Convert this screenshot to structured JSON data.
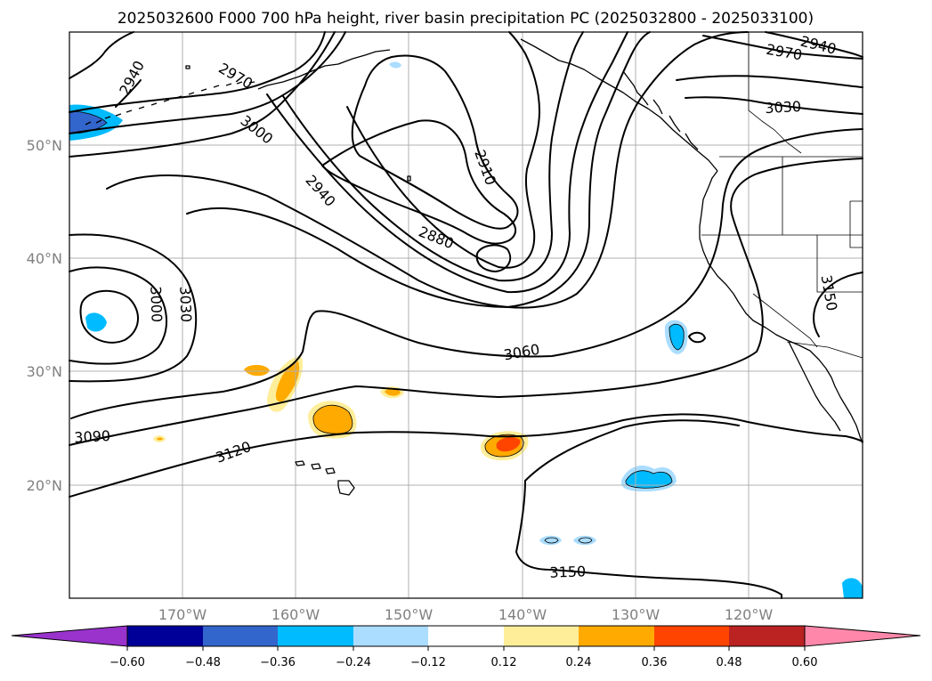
{
  "title": "2025032600 F000 700 hPa height, river basin precipitation PC (2025032800 - 2025033100)",
  "lat_labels": [
    "50°N",
    "40°N",
    "30°N",
    "20°N"
  ],
  "lon_labels": [
    "170°W",
    "160°W",
    "150°W",
    "140°W",
    "130°W",
    "120°W"
  ],
  "contour_labels": [
    "2940",
    "2970",
    "3000",
    "2940",
    "2910",
    "2880",
    "3000",
    "3030",
    "3060",
    "3090",
    "3120",
    "3150",
    "2970",
    "2940",
    "3030",
    "3150"
  ],
  "colorbar": {
    "colors": [
      "#9933cc",
      "#000099",
      "#3366cc",
      "#00bbff",
      "#aaddff",
      "#ffffff",
      "#ffee99",
      "#ffaa00",
      "#ff4400",
      "#bb2222",
      "#ff88aa"
    ],
    "tick_labels": [
      "−0.60",
      "−0.48",
      "−0.36",
      "−0.24",
      "−0.12",
      "0.12",
      "0.24",
      "0.36",
      "0.48",
      "0.60"
    ]
  },
  "shading_colors": {
    "neg_light": "#aaddff",
    "neg_mid": "#00bbff",
    "neg_strong": "#3366cc",
    "pos_light": "#ffee99",
    "pos_mid": "#ffaa00",
    "pos_strong": "#ff4400"
  }
}
